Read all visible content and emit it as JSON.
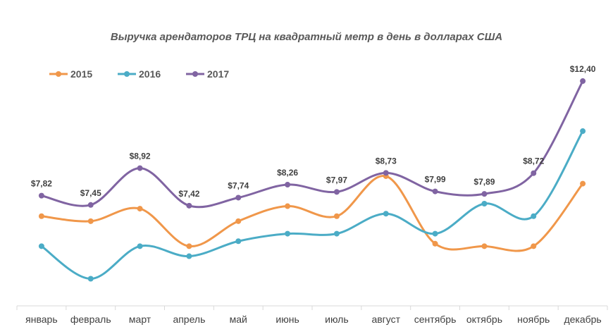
{
  "chart_data": {
    "type": "line",
    "title": "Выручка арендаторов ТРЦ на квадратный метр в день в долларах США",
    "xlabel": "",
    "ylabel": "",
    "categories": [
      "январь",
      "февраль",
      "март",
      "апрель",
      "май",
      "июнь",
      "июль",
      "август",
      "сентябрь",
      "октябрь",
      "ноябрь",
      "декабрь"
    ],
    "ylim": [
      3.5,
      13.5
    ],
    "grid": false,
    "legend_position": "top-left",
    "series": [
      {
        "name": "2015",
        "color": "#F0974A",
        "values": [
          7.0,
          6.8,
          7.3,
          5.8,
          6.8,
          7.4,
          7.0,
          8.6,
          5.9,
          5.8,
          5.8,
          8.3
        ],
        "labels": []
      },
      {
        "name": "2016",
        "color": "#4BACC6",
        "values": [
          5.8,
          4.5,
          5.8,
          5.4,
          6.0,
          6.3,
          6.3,
          7.1,
          6.3,
          7.5,
          7.0,
          10.4
        ],
        "labels": []
      },
      {
        "name": "2017",
        "color": "#8064A2",
        "values": [
          7.82,
          7.45,
          8.92,
          7.42,
          7.74,
          8.26,
          7.97,
          8.73,
          7.99,
          7.89,
          8.72,
          12.4
        ],
        "labels": [
          "$7,82",
          "$7,45",
          "$8,92",
          "$7,42",
          "$7,74",
          "$8,26",
          "$7,97",
          "$8,73",
          "$7,99",
          "$7,89",
          "$8,72",
          "$12,40"
        ]
      }
    ]
  }
}
